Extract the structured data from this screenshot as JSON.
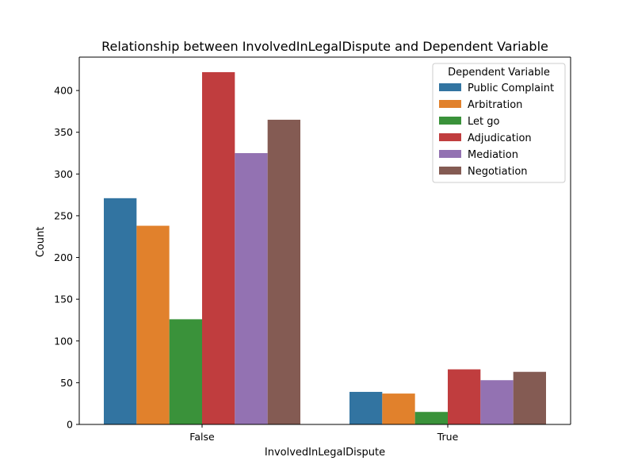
{
  "chart_data": {
    "type": "bar",
    "title": "Relationship between InvolvedInLegalDispute and Dependent Variable",
    "xlabel": "InvolvedInLegalDispute",
    "ylabel": "Count",
    "categories": [
      "False",
      "True"
    ],
    "ylim": [
      0,
      440
    ],
    "yticks": [
      0,
      50,
      100,
      150,
      200,
      250,
      300,
      350,
      400
    ],
    "legend": {
      "title": "Dependent Variable",
      "placement": "top-right"
    },
    "grid": false,
    "series": [
      {
        "name": "Public Complaint",
        "color": "#3274a1",
        "values": [
          271,
          39
        ]
      },
      {
        "name": "Arbitration",
        "color": "#e1812c",
        "values": [
          238,
          37
        ]
      },
      {
        "name": "Let go",
        "color": "#3a923a",
        "values": [
          126,
          15
        ]
      },
      {
        "name": "Adjudication",
        "color": "#c03d3e",
        "values": [
          422,
          66
        ]
      },
      {
        "name": "Mediation",
        "color": "#9372b2",
        "values": [
          325,
          53
        ]
      },
      {
        "name": "Negotiation",
        "color": "#845b53",
        "values": [
          365,
          63
        ]
      }
    ]
  }
}
